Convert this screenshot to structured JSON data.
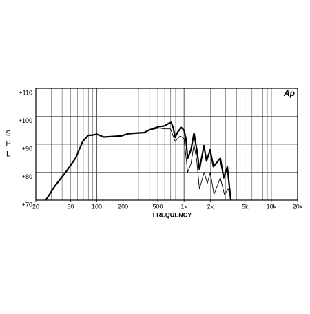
{
  "chart_data": {
    "type": "line",
    "logo": "Ap",
    "x_label": "FREQUENCY",
    "y_label": "SPL",
    "xscale": "log",
    "grid": true,
    "xlim": [
      20,
      20000
    ],
    "ylim": [
      70,
      110
    ],
    "xticks": [
      20,
      50,
      100,
      200,
      500,
      {
        "value": 1000,
        "label": "1k"
      },
      {
        "value": 2000,
        "label": "2k"
      },
      {
        "value": 5000,
        "label": "5k"
      },
      {
        "value": 10000,
        "label": "10k"
      },
      {
        "value": 20000,
        "label": "20k"
      }
    ],
    "yticks": [
      {
        "value": 70,
        "label": "+70"
      },
      {
        "value": 80,
        "label": "+80"
      },
      {
        "value": 90,
        "label": "+90"
      },
      {
        "value": 100,
        "label": "+100"
      },
      {
        "value": 110,
        "label": "+110"
      }
    ],
    "series": [
      {
        "color": "#000000",
        "width": 2.2,
        "x": [
          26,
          33,
          44,
          57,
          69,
          80,
          90,
          100,
          120,
          150,
          190,
          230,
          350,
          390,
          510,
          600,
          670,
          710,
          750,
          790,
          850,
          930,
          1000,
          1050,
          1100,
          1200,
          1300,
          1400,
          1500,
          1690,
          1810,
          1990,
          2170,
          2600,
          2850,
          3130,
          3430
        ],
        "values": [
          70,
          75,
          80,
          85,
          91,
          93.2,
          93.3,
          93.6,
          92.6,
          92.8,
          93,
          93.8,
          94.2,
          95,
          96.3,
          96.6,
          97.5,
          97.8,
          96,
          92.5,
          94.5,
          96,
          95,
          92,
          85,
          88,
          94,
          88,
          81,
          89.5,
          84,
          88,
          82,
          85,
          78,
          82,
          70
        ]
      },
      {
        "color": "#000000",
        "width": 0.9,
        "x": [
          26,
          33,
          44,
          57,
          69,
          80,
          90,
          100,
          120,
          150,
          190,
          230,
          350,
          390,
          510,
          600,
          700,
          790,
          900,
          1000,
          1100,
          1200,
          1300,
          1400,
          1500,
          1700,
          1850,
          2000,
          2200,
          2600,
          2900,
          3200,
          3500
        ],
        "values": [
          70,
          75,
          80,
          85,
          91,
          93.2,
          93.3,
          93.6,
          92.6,
          92.8,
          93,
          93.8,
          94.2,
          95,
          95.8,
          95.5,
          95.5,
          91,
          93,
          92,
          80,
          83,
          90,
          84,
          74,
          80,
          76,
          80,
          72,
          78,
          72,
          74,
          70
        ]
      }
    ]
  }
}
